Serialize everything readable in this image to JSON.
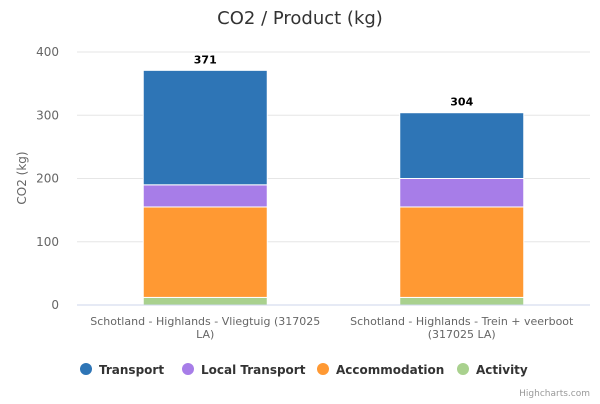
{
  "chart_data": {
    "type": "stacked-bar",
    "title": "CO2 / Product (kg)",
    "ylabel": "CO2 (kg)",
    "xlabel": "",
    "ylim": [
      0,
      400
    ],
    "yticks": [
      0,
      100,
      200,
      300,
      400
    ],
    "categories": [
      [
        "Schotland - Highlands - Vliegtuig (317025",
        "LA)"
      ],
      [
        "Schotland - Highlands - Trein + veerboot",
        "(317025 LA)"
      ]
    ],
    "series": [
      {
        "name": "Activity",
        "color": "#a9d18e",
        "values": [
          12,
          12
        ]
      },
      {
        "name": "Accommodation",
        "color": "#ff9933",
        "values": [
          143,
          143
        ]
      },
      {
        "name": "Local Transport",
        "color": "#a77de8",
        "values": [
          35,
          45
        ]
      },
      {
        "name": "Transport",
        "color": "#2e75b6",
        "values": [
          181,
          104
        ]
      }
    ],
    "totals": [
      "371",
      "304"
    ],
    "legend_order": [
      "Transport",
      "Local Transport",
      "Accommodation",
      "Activity"
    ],
    "legend_position": "bottom",
    "grid": true
  },
  "credits": "Highcharts.com"
}
